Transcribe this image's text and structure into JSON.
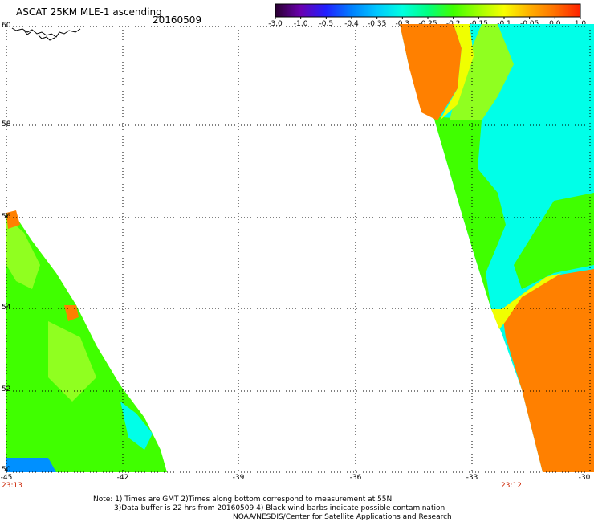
{
  "header": {
    "title": "ASCAT 25KM MLE-1 ascending",
    "date": "20160509"
  },
  "colorbar": {
    "labels": [
      "-3.0",
      "-1.0",
      "-0.5",
      "-0.4",
      "-0.35",
      "-0.3",
      "-0.25",
      "-0.2",
      "-0.15",
      "-0.1",
      "-0.05",
      "0.0",
      "1.0"
    ],
    "colors": [
      "#2a0030",
      "#6a00b0",
      "#2020ff",
      "#0080ff",
      "#00c8ff",
      "#00ffe0",
      "#00ff80",
      "#40ff00",
      "#a0ff00",
      "#f8ff00",
      "#ffb000",
      "#ff7000",
      "#ff2000"
    ]
  },
  "axes": {
    "lat_ticks": [
      "60",
      "58",
      "56",
      "54",
      "52",
      "50"
    ],
    "lon_ticks": [
      "-45",
      "-42",
      "-39",
      "-36",
      "-33",
      "-30"
    ]
  },
  "times": {
    "left": "23:13",
    "right": "23:12"
  },
  "notes": {
    "line1": "Note: 1) Times are GMT 2)Times along bottom correspond to measurement at 55N",
    "line2": "3)Data buffer is 22 hrs from 20160509 4) Black wind barbs indicate possible contamination",
    "line3": "NOAA/NESDIS/Center for Satellite Applications and Research"
  },
  "colors": {
    "orange": "#ff8000",
    "yellow": "#f0ff00",
    "green": "#40ff00",
    "lime": "#90ff20",
    "cyan": "#00ffe8",
    "aqua": "#00f0ff",
    "blue": "#0090ff"
  }
}
